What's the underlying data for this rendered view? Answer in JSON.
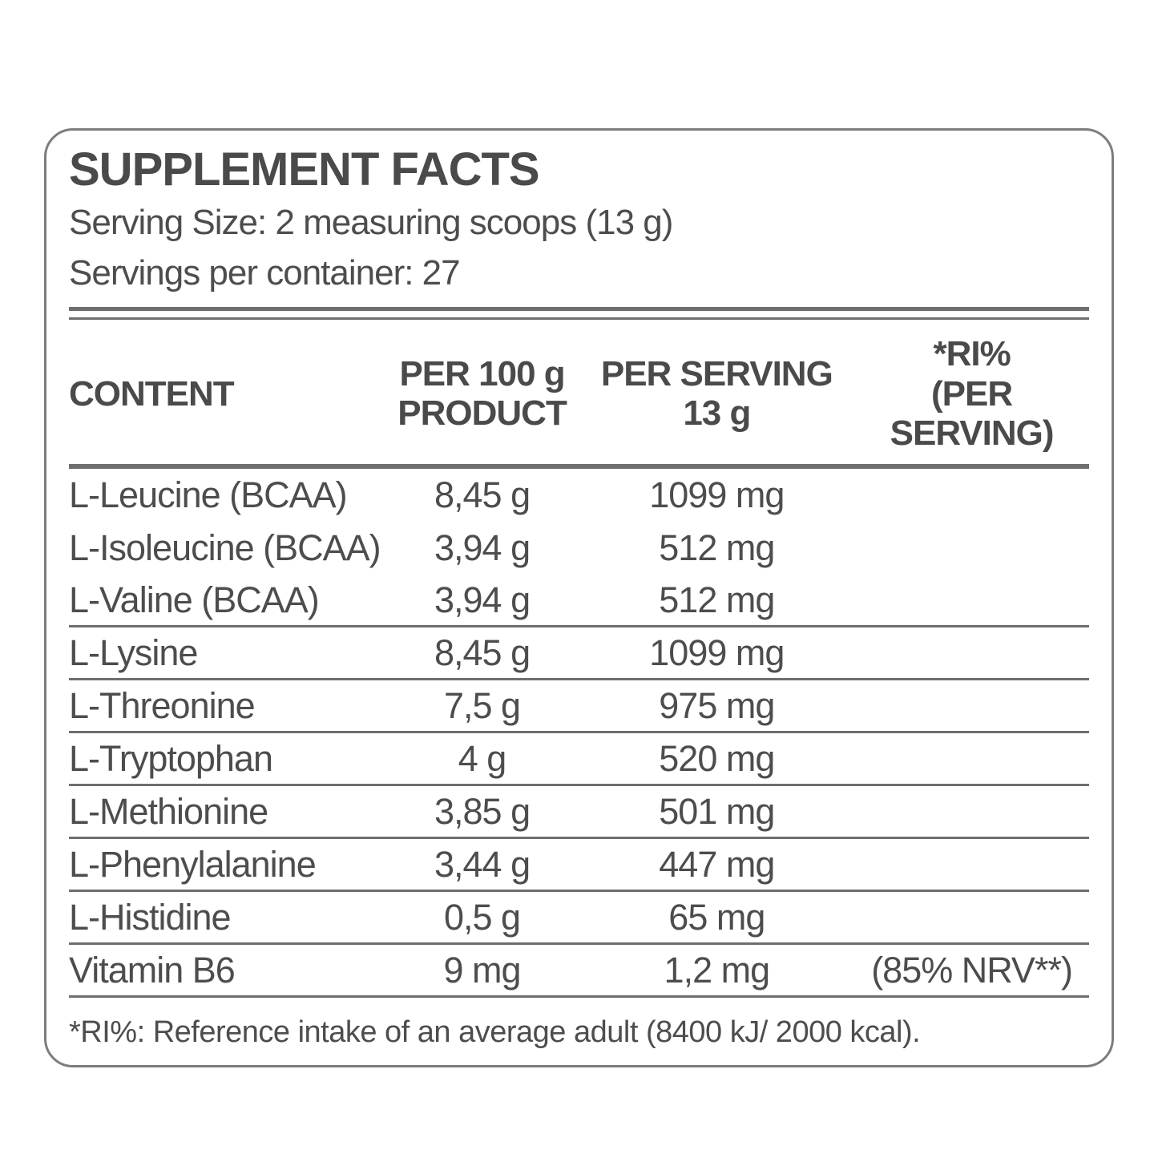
{
  "label": {
    "title": "SUPPLEMENT FACTS",
    "serving_size": "Serving Size: 2 measuring scoops (13 g)",
    "servings_per_container": "Servings per container: 27",
    "footnote": "*RI%: Reference intake of an average adult (8400 kJ/ 2000 kcal)."
  },
  "table": {
    "headers": {
      "content": "CONTENT",
      "per_100g_line1": "PER 100 g",
      "per_100g_line2": "PRODUCT",
      "per_serving_line1": "PER SERVING",
      "per_serving_line2": "13 g",
      "ri_line1": "*RI%",
      "ri_line2": "(PER SERVING)"
    },
    "rows": [
      {
        "content": "L-Leucine (BCAA)",
        "per_100g": "8,45 g",
        "per_serving": "1099 mg",
        "ri": "",
        "divider_after": false
      },
      {
        "content": "L-Isoleucine (BCAA)",
        "per_100g": "3,94 g",
        "per_serving": "512 mg",
        "ri": "",
        "divider_after": false
      },
      {
        "content": "L-Valine (BCAA)",
        "per_100g": "3,94 g",
        "per_serving": "512 mg",
        "ri": "",
        "divider_after": true
      },
      {
        "content": "L-Lysine",
        "per_100g": "8,45 g",
        "per_serving": "1099 mg",
        "ri": "",
        "divider_after": true
      },
      {
        "content": "L-Threonine",
        "per_100g": "7,5 g",
        "per_serving": "975 mg",
        "ri": "",
        "divider_after": true
      },
      {
        "content": "L-Tryptophan",
        "per_100g": "4 g",
        "per_serving": "520 mg",
        "ri": "",
        "divider_after": true
      },
      {
        "content": "L-Methionine",
        "per_100g": "3,85 g",
        "per_serving": "501 mg",
        "ri": "",
        "divider_after": true
      },
      {
        "content": "L-Phenylalanine",
        "per_100g": "3,44 g",
        "per_serving": "447 mg",
        "ri": "",
        "divider_after": true
      },
      {
        "content": "L-Histidine",
        "per_100g": "0,5 g",
        "per_serving": "65 mg",
        "ri": "",
        "divider_after": true
      },
      {
        "content": "Vitamin B6",
        "per_100g": "9 mg",
        "per_serving": "1,2 mg",
        "ri": "(85% NRV**)",
        "divider_after": true
      }
    ]
  },
  "colors": {
    "text": "#4d4d4d",
    "border": "#6e6e6e",
    "background": "#ffffff"
  }
}
